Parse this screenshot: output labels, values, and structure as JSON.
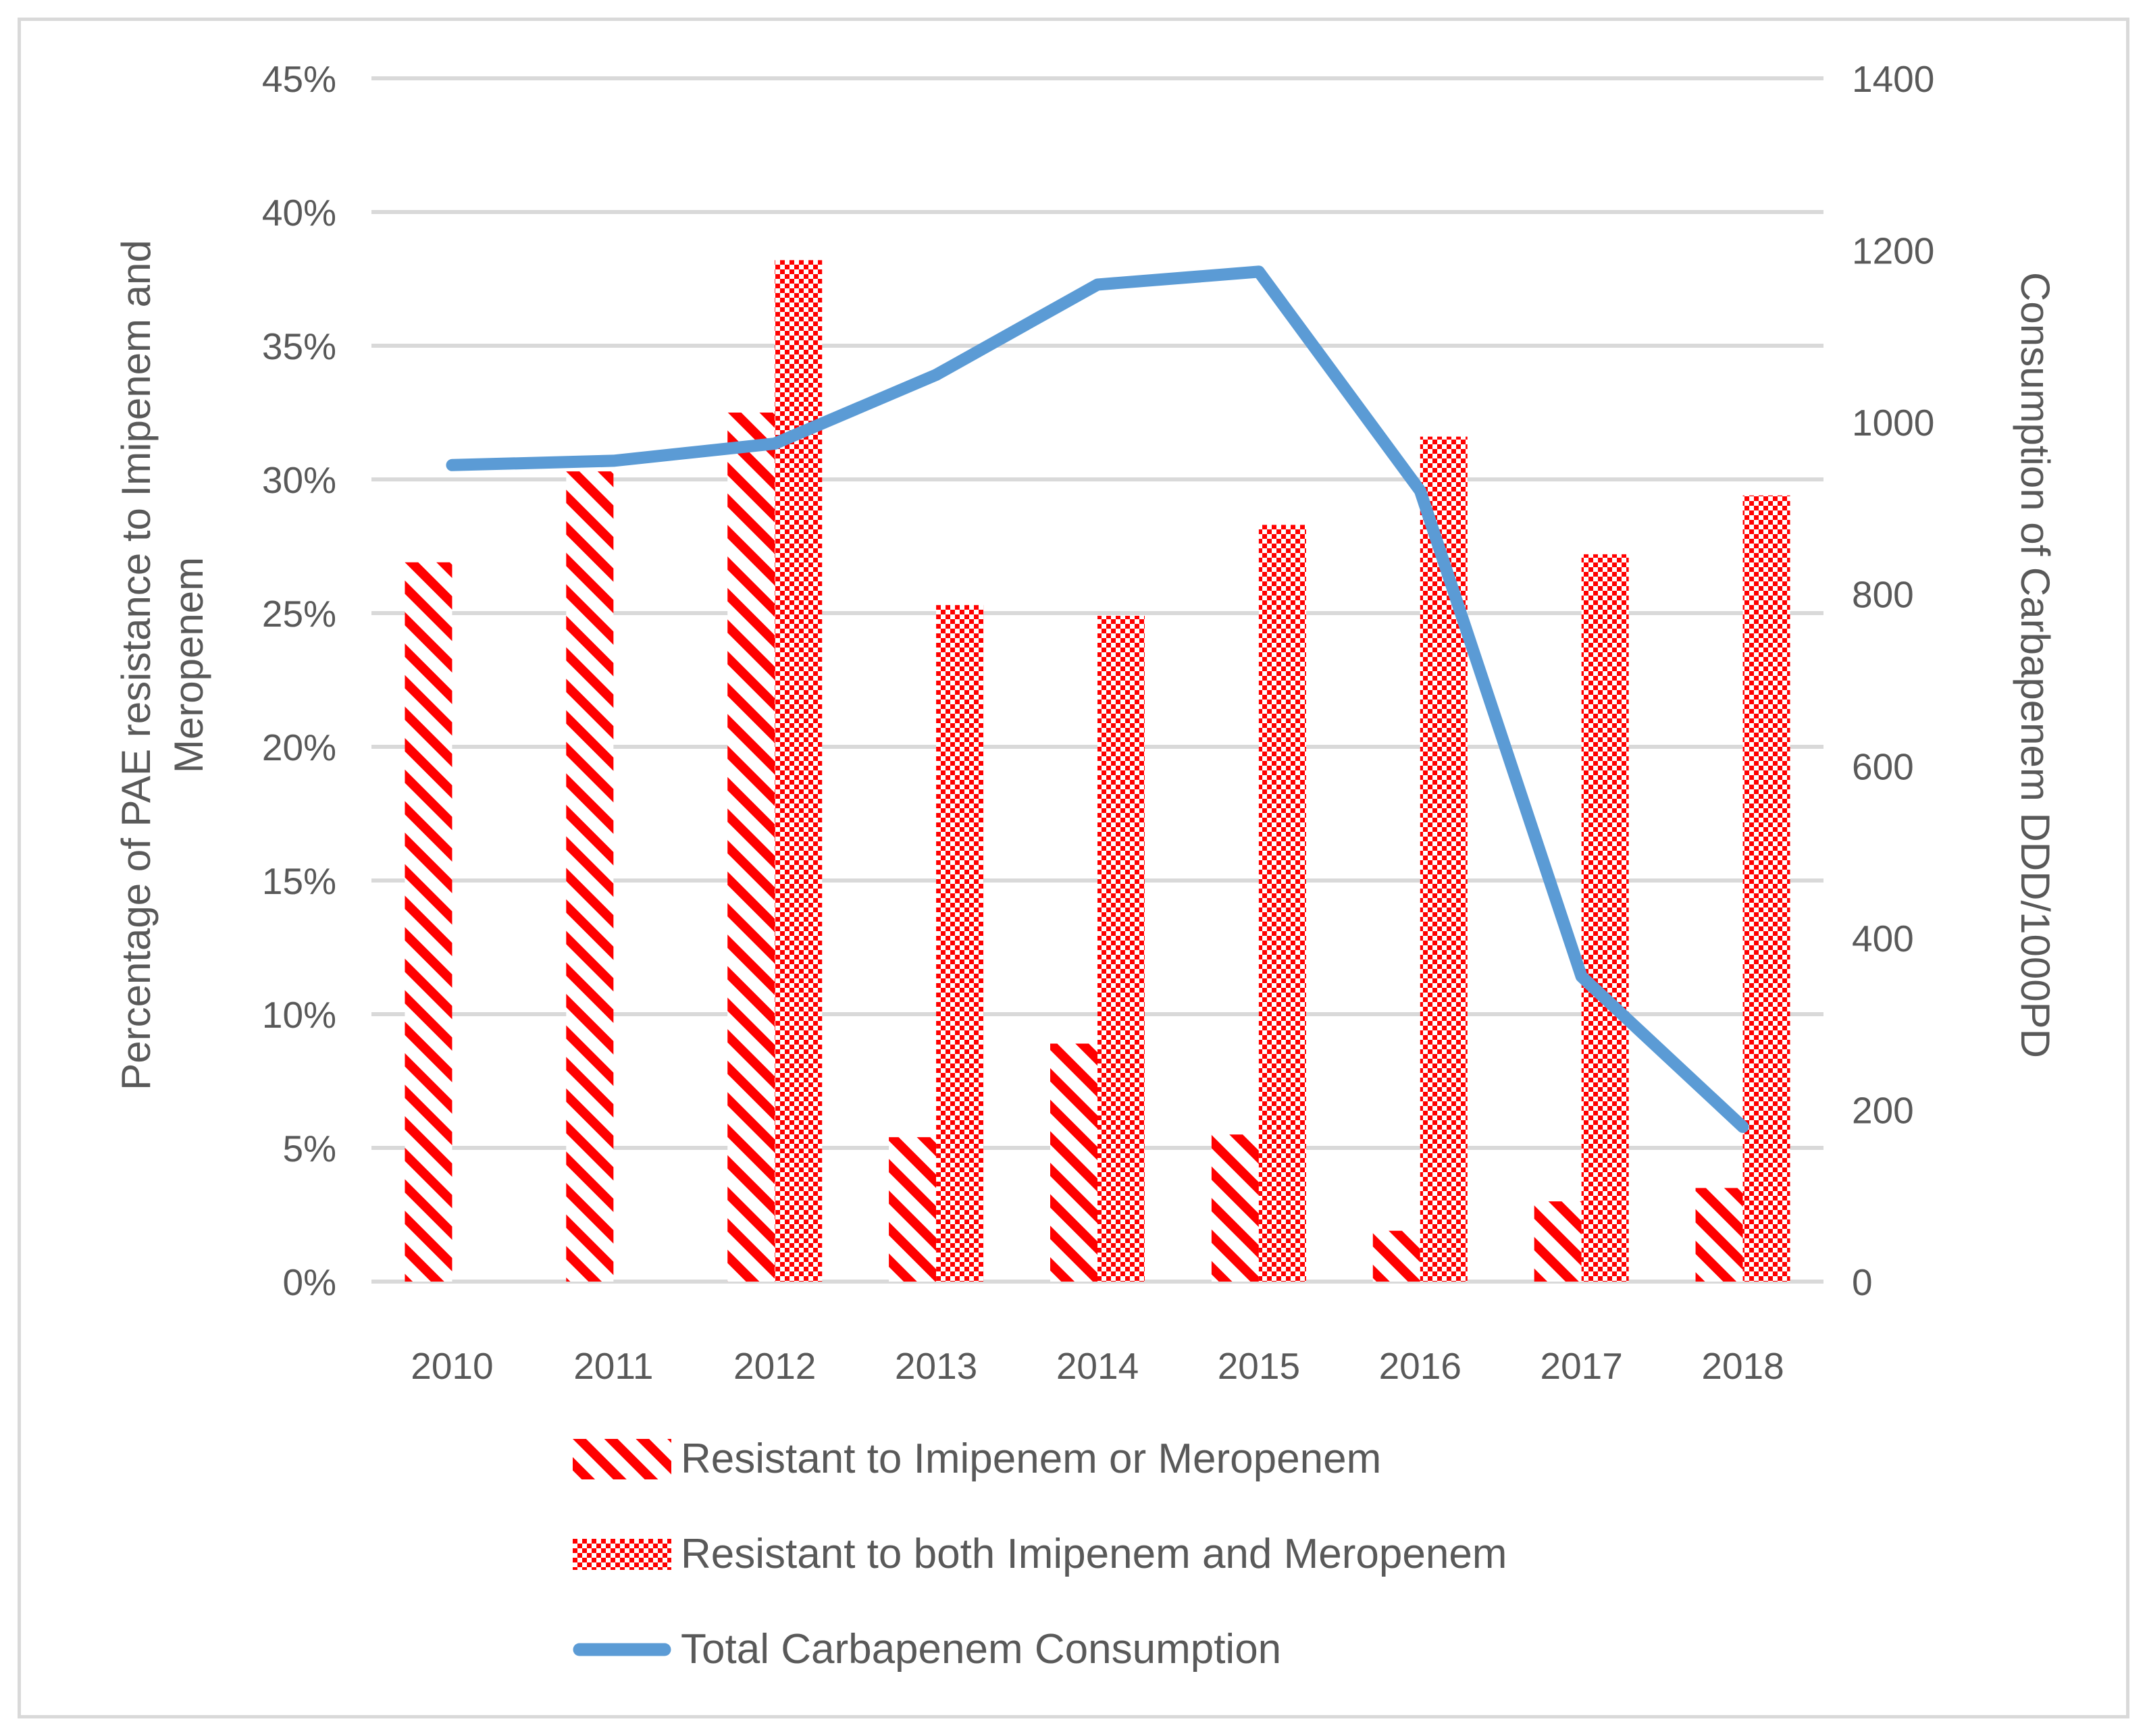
{
  "chart_data": {
    "type": "combo-bar-line",
    "categories": [
      "2010",
      "2011",
      "2012",
      "2013",
      "2014",
      "2015",
      "2016",
      "2017",
      "2018"
    ],
    "series": [
      {
        "name": "Resistant to Imipenem or Meropenem",
        "type": "bar",
        "style": "diagonal-stripe",
        "color": "#FF0000",
        "axis": "left",
        "unit": "%",
        "values": [
          26.9,
          30.3,
          32.5,
          5.4,
          8.9,
          5.5,
          1.9,
          3.0,
          3.5
        ]
      },
      {
        "name": "Resistant to both Imipenem and Meropenem",
        "type": "bar",
        "style": "checker-dots",
        "color": "#FF0000",
        "axis": "left",
        "unit": "%",
        "values": [
          null,
          null,
          38.2,
          25.3,
          24.9,
          28.3,
          31.6,
          27.2,
          29.4
        ]
      },
      {
        "name": "Total Carbapenem Consumption",
        "type": "line",
        "color": "#5B9BD5",
        "axis": "right",
        "unit": "DDD/1000PD",
        "values": [
          950,
          955,
          975,
          1055,
          1160,
          1175,
          920,
          355,
          180
        ]
      }
    ],
    "left_axis": {
      "title": "Percentage of PAE resistance to Imipenem and Meropenem",
      "title_line1": "Percentage of PAE resistance to Imipenem and",
      "title_line2": "Meropenem",
      "min": 0,
      "max": 45,
      "step": 5,
      "tick_labels": [
        "0%",
        "5%",
        "10%",
        "15%",
        "20%",
        "25%",
        "30%",
        "35%",
        "40%",
        "45%"
      ]
    },
    "right_axis": {
      "title": "Consumption of Carbapenem DDD/1000PD",
      "min": 0,
      "max": 1400,
      "step": 200,
      "tick_labels": [
        "0",
        "200",
        "400",
        "600",
        "800",
        "1000",
        "1200",
        "1400"
      ]
    },
    "grid": true,
    "legend_position": "bottom-left",
    "colors": {
      "grid": "#D9D9D9",
      "text": "#595959",
      "border": "#D9D9D9",
      "background": "#FFFFFF",
      "bar_red": "#FF0000",
      "line_blue": "#5B9BD5"
    }
  }
}
